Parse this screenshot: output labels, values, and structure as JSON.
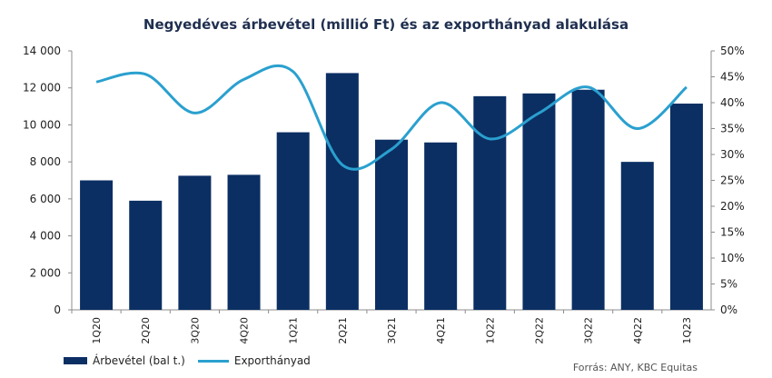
{
  "chart_data": {
    "type": "bar",
    "title": "Negyedéves árbevétel (millió Ft) és az exporthányad alakulása",
    "categories": [
      "1Q20",
      "2Q20",
      "3Q20",
      "4Q20",
      "1Q21",
      "2Q21",
      "3Q21",
      "4Q21",
      "1Q22",
      "2Q22",
      "3Q22",
      "4Q22",
      "1Q23"
    ],
    "series": [
      {
        "name": "Árbevétel (bal t.)",
        "type": "bar",
        "axis": "left",
        "values": [
          7000,
          5900,
          7250,
          7300,
          9600,
          12800,
          9200,
          9050,
          11550,
          11700,
          11900,
          8000,
          11150
        ]
      },
      {
        "name": "Exporthányad",
        "type": "line",
        "axis": "right",
        "values": [
          44,
          45.5,
          38,
          44.5,
          46,
          28,
          31,
          40,
          33,
          38,
          43,
          35,
          43
        ]
      }
    ],
    "y_left": {
      "min": 0,
      "max": 14000,
      "ticks": [
        "0",
        "2 000",
        "4 000",
        "6 000",
        "8 000",
        "10 000",
        "12 000",
        "14 000"
      ]
    },
    "y_right": {
      "min": 0,
      "max": 50,
      "ticks": [
        "0%",
        "5%",
        "10%",
        "15%",
        "20%",
        "25%",
        "30%",
        "35%",
        "40%",
        "45%",
        "50%"
      ]
    },
    "grid": false,
    "legend_position": "bottom-left",
    "colors": {
      "bar": "#0b2f63",
      "line": "#2aa0cf"
    }
  },
  "source": "Forrás: ANY, KBC Equitas"
}
